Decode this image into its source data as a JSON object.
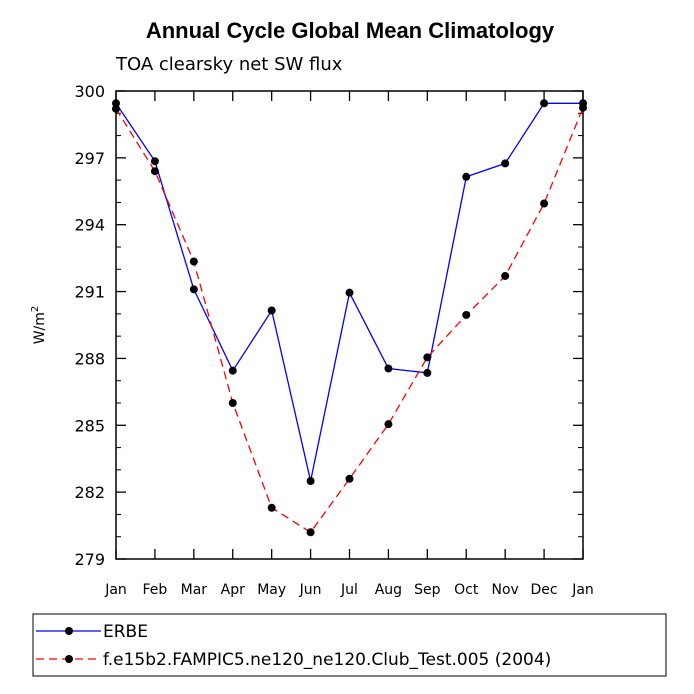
{
  "chart_data": {
    "type": "line",
    "title": "Annual Cycle Global Mean Climatology",
    "subtitle": "TOA clearsky net SW flux",
    "xlabel": "",
    "ylabel_base": "W/m",
    "ylabel_sup": "2",
    "categories": [
      "Jan",
      "Feb",
      "Mar",
      "Apr",
      "May",
      "Jun",
      "Jul",
      "Aug",
      "Sep",
      "Oct",
      "Nov",
      "Dec",
      "Jan"
    ],
    "ylim": [
      279,
      300
    ],
    "yticks": [
      279,
      282,
      285,
      288,
      291,
      294,
      297,
      300
    ],
    "grid": false,
    "legend_position": "bottom",
    "series": [
      {
        "name": "ERBE",
        "color": "#0000ff",
        "dash": "solid",
        "values": [
          299.45,
          296.85,
          291.1,
          287.45,
          290.15,
          282.5,
          290.95,
          287.55,
          287.35,
          296.15,
          296.75,
          299.45,
          299.45
        ]
      },
      {
        "name": "f.e15b2.FAMPIC5.ne120_ne120.Club_Test.005 (2004)",
        "color": "#ff0000",
        "dash": "dashed",
        "values": [
          299.2,
          296.4,
          292.35,
          286.0,
          281.3,
          280.2,
          282.6,
          285.05,
          288.05,
          289.95,
          291.7,
          294.95,
          299.25
        ]
      }
    ]
  }
}
